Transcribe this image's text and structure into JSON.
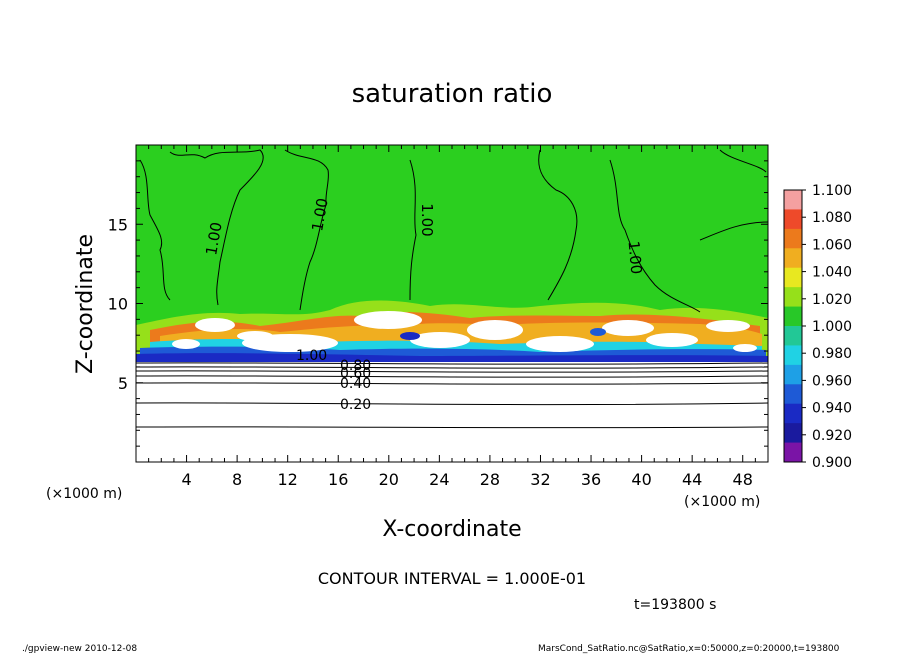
{
  "chart_data": {
    "type": "heatmap",
    "title": "saturation ratio",
    "xlabel": "X-coordinate",
    "ylabel": "Z-coordinate",
    "x_unit_left": "(×1000 m)",
    "x_unit_right": "(×1000 m)",
    "xlim": [
      0,
      50
    ],
    "ylim": [
      0,
      20
    ],
    "x_ticks": [
      4,
      8,
      12,
      16,
      20,
      24,
      28,
      32,
      36,
      40,
      44,
      48
    ],
    "y_ticks": [
      5,
      10,
      15
    ],
    "colorbar": {
      "levels": [
        "1.100",
        "1.080",
        "1.060",
        "1.040",
        "1.020",
        "1.000",
        "0.980",
        "0.960",
        "0.940",
        "0.920",
        "0.900"
      ],
      "colors": [
        "#f4a0a0",
        "#ee4a2a",
        "#ec7a1c",
        "#f0ae20",
        "#e8e820",
        "#96e01a",
        "#28c828",
        "#22c896",
        "#20d2e4",
        "#1ea0e6",
        "#1e5ad6",
        "#1a2ac4",
        "#1a1a9e",
        "#7a14a6"
      ]
    },
    "contour_labels": [
      "1.00",
      "1.00",
      "1.00",
      "1.00",
      "1.00",
      "0.80",
      "0.60",
      "0.40",
      "0.20"
    ],
    "contour_interval": "CONTOUR INTERVAL = 1.000E-01",
    "time_label": "t=193800 s",
    "footer_left": "./gpview-new  2010-12-08",
    "footer_right": "MarsCond_SatRatio.nc@SatRatio,x=0:50000,z=0:20000,t=193800"
  }
}
